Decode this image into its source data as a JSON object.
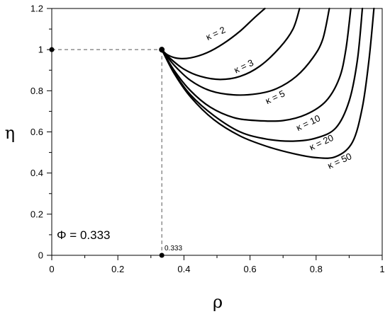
{
  "chart_data": {
    "type": "line",
    "xlabel": "ρ",
    "ylabel": "η",
    "xlim": [
      0,
      1
    ],
    "ylim": [
      0,
      1.2
    ],
    "xticks": [
      0,
      0.2,
      0.4,
      0.6,
      0.8,
      1
    ],
    "xtick_labels": [
      "0",
      "0.2",
      "0.4",
      "0.6",
      "0.8",
      "1"
    ],
    "yticks": [
      0,
      0.2,
      0.4,
      0.6,
      0.8,
      1,
      1.2
    ],
    "ytick_labels": [
      "0",
      "0.2",
      "0.4",
      "0.6",
      "0.8",
      "1",
      "1.2"
    ],
    "grid": false,
    "annotation": "Φ = 0.333",
    "marker_label": "0.333",
    "reference_point": {
      "x": 0.333,
      "y": 1
    },
    "axis_markers": [
      {
        "x": 0,
        "y": 1
      },
      {
        "x": 0.333,
        "y": 0
      }
    ],
    "series": [
      {
        "name": "κ = 2",
        "label_at": [
          0.5,
          1.065
        ],
        "label_rotate": -25,
        "points": [
          [
            0.333,
            1.0
          ],
          [
            0.35,
            0.975
          ],
          [
            0.38,
            0.958
          ],
          [
            0.42,
            0.96
          ],
          [
            0.47,
            0.985
          ],
          [
            0.52,
            1.03
          ],
          [
            0.57,
            1.09
          ],
          [
            0.61,
            1.15
          ],
          [
            0.645,
            1.2
          ]
        ]
      },
      {
        "name": "κ = 3",
        "label_at": [
          0.585,
          0.905
        ],
        "label_rotate": -25,
        "points": [
          [
            0.333,
            1.0
          ],
          [
            0.36,
            0.955
          ],
          [
            0.4,
            0.905
          ],
          [
            0.45,
            0.87
          ],
          [
            0.51,
            0.855
          ],
          [
            0.57,
            0.87
          ],
          [
            0.63,
            0.92
          ],
          [
            0.69,
            1.01
          ],
          [
            0.73,
            1.1
          ],
          [
            0.75,
            1.2
          ]
        ]
      },
      {
        "name": "κ = 5",
        "label_at": [
          0.68,
          0.755
        ],
        "label_rotate": -25,
        "points": [
          [
            0.333,
            1.0
          ],
          [
            0.37,
            0.925
          ],
          [
            0.42,
            0.85
          ],
          [
            0.48,
            0.8
          ],
          [
            0.55,
            0.78
          ],
          [
            0.62,
            0.785
          ],
          [
            0.68,
            0.81
          ],
          [
            0.74,
            0.87
          ],
          [
            0.79,
            0.96
          ],
          [
            0.82,
            1.05
          ],
          [
            0.84,
            1.2
          ]
        ]
      },
      {
        "name": "κ = 10",
        "label_at": [
          0.78,
          0.63
        ],
        "label_rotate": -25,
        "points": [
          [
            0.333,
            1.0
          ],
          [
            0.37,
            0.9
          ],
          [
            0.42,
            0.8
          ],
          [
            0.48,
            0.72
          ],
          [
            0.55,
            0.67
          ],
          [
            0.62,
            0.655
          ],
          [
            0.7,
            0.655
          ],
          [
            0.77,
            0.685
          ],
          [
            0.83,
            0.75
          ],
          [
            0.87,
            0.86
          ],
          [
            0.89,
            1.0
          ],
          [
            0.905,
            1.2
          ]
        ]
      },
      {
        "name": "κ = 20",
        "label_at": [
          0.82,
          0.535
        ],
        "label_rotate": -25,
        "points": [
          [
            0.333,
            1.0
          ],
          [
            0.37,
            0.89
          ],
          [
            0.42,
            0.78
          ],
          [
            0.49,
            0.68
          ],
          [
            0.57,
            0.6
          ],
          [
            0.65,
            0.565
          ],
          [
            0.73,
            0.555
          ],
          [
            0.8,
            0.57
          ],
          [
            0.86,
            0.62
          ],
          [
            0.9,
            0.75
          ],
          [
            0.925,
            0.95
          ],
          [
            0.94,
            1.2
          ]
        ]
      },
      {
        "name": "κ = 50",
        "label_at": [
          0.875,
          0.445
        ],
        "label_rotate": -25,
        "points": [
          [
            0.333,
            1.0
          ],
          [
            0.37,
            0.885
          ],
          [
            0.42,
            0.77
          ],
          [
            0.49,
            0.66
          ],
          [
            0.57,
            0.58
          ],
          [
            0.65,
            0.53
          ],
          [
            0.73,
            0.495
          ],
          [
            0.8,
            0.475
          ],
          [
            0.86,
            0.48
          ],
          [
            0.91,
            0.55
          ],
          [
            0.94,
            0.72
          ],
          [
            0.96,
            0.95
          ],
          [
            0.975,
            1.2
          ]
        ]
      }
    ]
  }
}
